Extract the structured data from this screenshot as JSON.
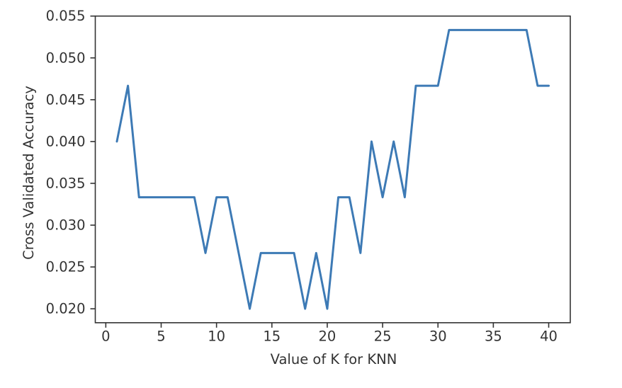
{
  "figure": {
    "background_color": "#ffffff"
  },
  "chart_data": {
    "type": "line",
    "title": "",
    "xlabel": "Value of K for KNN",
    "ylabel": "Cross Validated Accuracy",
    "x": [
      1,
      2,
      3,
      4,
      5,
      6,
      7,
      8,
      9,
      10,
      11,
      12,
      13,
      14,
      15,
      16,
      17,
      18,
      19,
      20,
      21,
      22,
      23,
      24,
      25,
      26,
      27,
      28,
      29,
      30,
      31,
      32,
      33,
      34,
      35,
      36,
      37,
      38,
      39,
      40
    ],
    "series": [
      {
        "name": "cross-validated-accuracy",
        "color": "#3d7ab5",
        "values": [
          0.04,
          0.046667,
          0.033333,
          0.033333,
          0.033333,
          0.033333,
          0.033333,
          0.033333,
          0.026667,
          0.033333,
          0.033333,
          0.026667,
          0.02,
          0.026667,
          0.026667,
          0.026667,
          0.026667,
          0.02,
          0.026667,
          0.02,
          0.033333,
          0.033333,
          0.026667,
          0.04,
          0.033333,
          0.04,
          0.033333,
          0.046667,
          0.046667,
          0.046667,
          0.053333,
          0.053333,
          0.053333,
          0.053333,
          0.053333,
          0.053333,
          0.053333,
          0.053333,
          0.046667,
          0.046667
        ]
      }
    ],
    "xlim": [
      -0.95,
      41.95
    ],
    "ylim": [
      0.018333,
      0.055
    ],
    "x_ticks": [
      0,
      5,
      10,
      15,
      20,
      25,
      30,
      35,
      40
    ],
    "x_tick_labels": [
      "0",
      "5",
      "10",
      "15",
      "20",
      "25",
      "30",
      "35",
      "40"
    ],
    "y_ticks": [
      0.02,
      0.025,
      0.03,
      0.035,
      0.04,
      0.045,
      0.05,
      0.055
    ],
    "y_tick_labels": [
      "0.020",
      "0.025",
      "0.030",
      "0.035",
      "0.040",
      "0.045",
      "0.050",
      "0.055"
    ],
    "grid": false,
    "legend_position": "none",
    "axis_color": "#333333",
    "text_color": "#333333"
  }
}
